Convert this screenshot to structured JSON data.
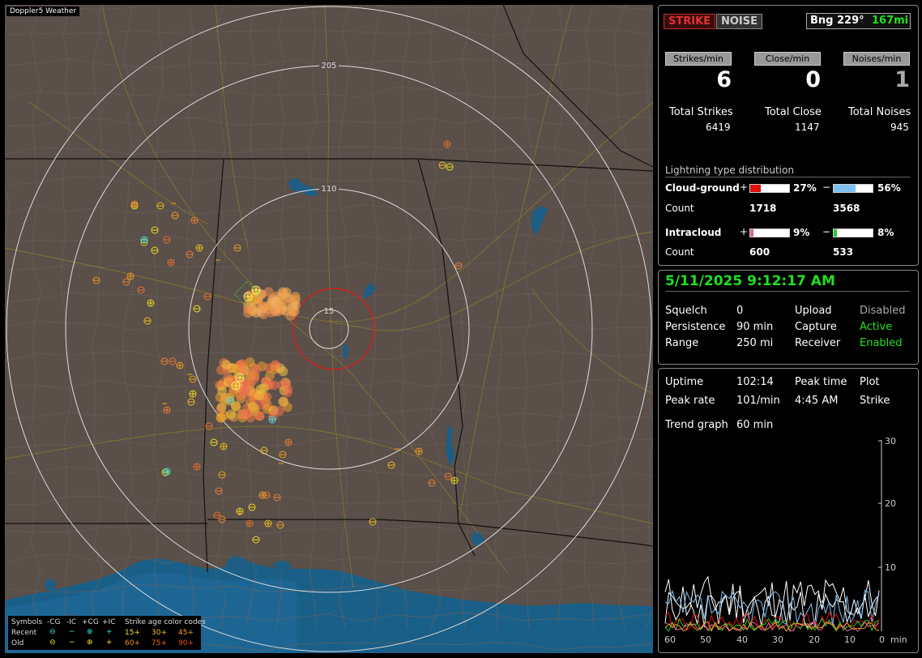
{
  "app_title": "Doppler5 Weather",
  "header": {
    "strike": "STRIKE",
    "noise": "NOISE",
    "bearing": "Bng 229°",
    "distance": "167mi"
  },
  "rates": {
    "labels": [
      "Strikes/min",
      "Close/min",
      "Noises/min"
    ],
    "values": [
      "6",
      "0",
      "1"
    ],
    "total_labels": [
      "Total Strikes",
      "Total Close",
      "Total Noises"
    ],
    "totals": [
      "6419",
      "1147",
      "945"
    ]
  },
  "distribution": {
    "title": "Lightning type distribution",
    "cg_label": "Cloud-ground",
    "count_label": "Count",
    "ic_label": "Intracloud",
    "plus": "+",
    "minus": "−",
    "cg_pos_pct": "27%",
    "cg_neg_pct": "56%",
    "cg_pos_count": "1718",
    "cg_neg_count": "3568",
    "ic_pos_pct": "9%",
    "ic_neg_pct": "8%",
    "ic_pos_count": "600",
    "ic_neg_count": "533",
    "cg_pos_color": "#e01010",
    "cg_neg_color": "#7ec0f0",
    "ic_pos_color": "#e060a0",
    "ic_neg_color": "#20d020"
  },
  "status": {
    "datetime": "5/11/2025 9:12:17 AM",
    "squelch_label": "Squelch",
    "squelch": "0",
    "persistence_label": "Persistence",
    "persistence": "90 min",
    "range_label": "Range",
    "range": "250 mi",
    "upload_label": "Upload",
    "upload": "Disabled",
    "capture_label": "Capture",
    "capture": "Active",
    "receiver_label": "Receiver",
    "receiver": "Enabled"
  },
  "stats": {
    "uptime_label": "Uptime",
    "uptime": "102:14",
    "peak_time_label": "Peak time",
    "peak_time": "4:45 AM",
    "plot_label": "Plot",
    "plot": "Strike",
    "peak_rate_label": "Peak rate",
    "peak_rate": "101/min",
    "trend_label": "Trend graph",
    "trend": "60 min"
  },
  "graph": {
    "y_ticks": [
      "30",
      "20",
      "10"
    ],
    "x_ticks": [
      "60",
      "50",
      "40",
      "30",
      "20",
      "10",
      "0"
    ],
    "x_unit": "min"
  },
  "map": {
    "range_labels": [
      "205",
      "110",
      "15"
    ],
    "legend": {
      "header": [
        "Symbols",
        "-CG",
        "-IC",
        "+CG",
        "+IC",
        "Strike age color codes"
      ],
      "recent": "Recent",
      "old": "Old",
      "recent_ages": [
        "15+",
        "30+",
        "45+"
      ],
      "old_ages": [
        "60+",
        "75+",
        "90+"
      ]
    }
  }
}
